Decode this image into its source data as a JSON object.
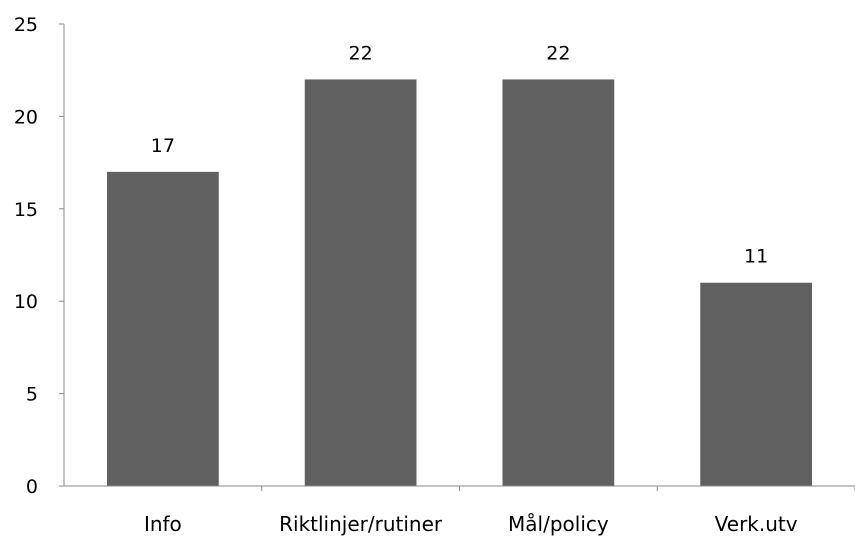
{
  "chart_data": {
    "type": "bar",
    "title": "",
    "xlabel": "",
    "ylabel": "",
    "categories": [
      "Info",
      "Riktlinjer/rutiner",
      "Mål/policy",
      "Verk.utv"
    ],
    "values": [
      17,
      22,
      22,
      11
    ],
    "data_labels": [
      "17",
      "22",
      "22",
      "11"
    ],
    "ylim": [
      0,
      25
    ],
    "yticks": [
      0,
      5,
      10,
      15,
      20,
      25
    ],
    "ytick_labels": [
      "0",
      "5",
      "10",
      "15",
      "20",
      "25"
    ],
    "grid": false,
    "legend": "none",
    "bar_color": "#606060",
    "axis_color": "#888888"
  }
}
